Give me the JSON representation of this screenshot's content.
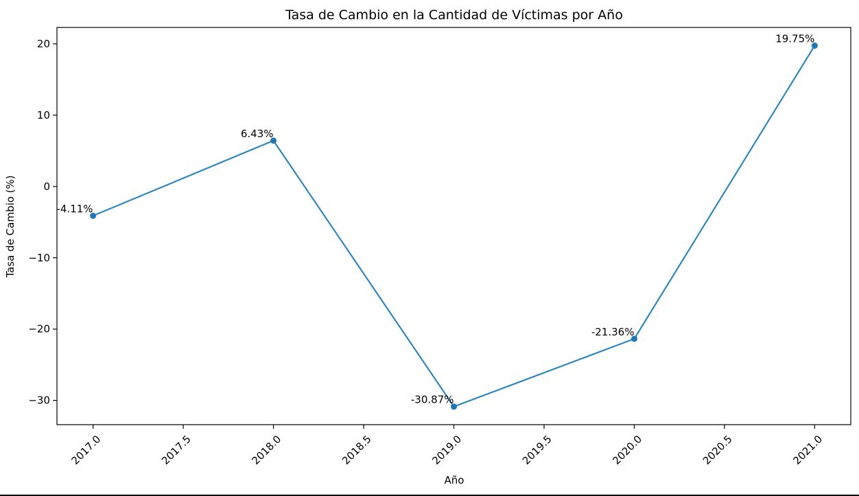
{
  "chart_data": {
    "type": "line",
    "title": "Tasa de Cambio en la Cantidad de Víctimas por Año",
    "xlabel": "Año",
    "ylabel": "Tasa de Cambio (%)",
    "x": [
      2017,
      2018,
      2019,
      2020,
      2021
    ],
    "series": [
      {
        "values": [
          -4.11,
          6.43,
          -30.87,
          -21.36,
          19.75
        ],
        "labels": [
          "-4.11%",
          "6.43%",
          "-30.87%",
          "-21.36%",
          "19.75%"
        ],
        "color": "#1f77b4"
      }
    ],
    "xlim": [
      2016.8,
      2021.2
    ],
    "ylim": [
      -33.4,
      22.3
    ],
    "xticks": [
      "2017.0",
      "2017.5",
      "2018.0",
      "2018.5",
      "2019.0",
      "2019.5",
      "2020.0",
      "2020.5",
      "2021.0"
    ],
    "xtick_values": [
      2017,
      2017.5,
      2018,
      2018.5,
      2019,
      2019.5,
      2020,
      2020.5,
      2021
    ],
    "yticks": [
      "20",
      "10",
      "0",
      "−10",
      "−20",
      "−30"
    ],
    "ytick_values": [
      20,
      10,
      0,
      -10,
      -20,
      -30
    ],
    "xtick_rotation": 45,
    "grid": false,
    "legend": "none",
    "marker": "circle"
  }
}
